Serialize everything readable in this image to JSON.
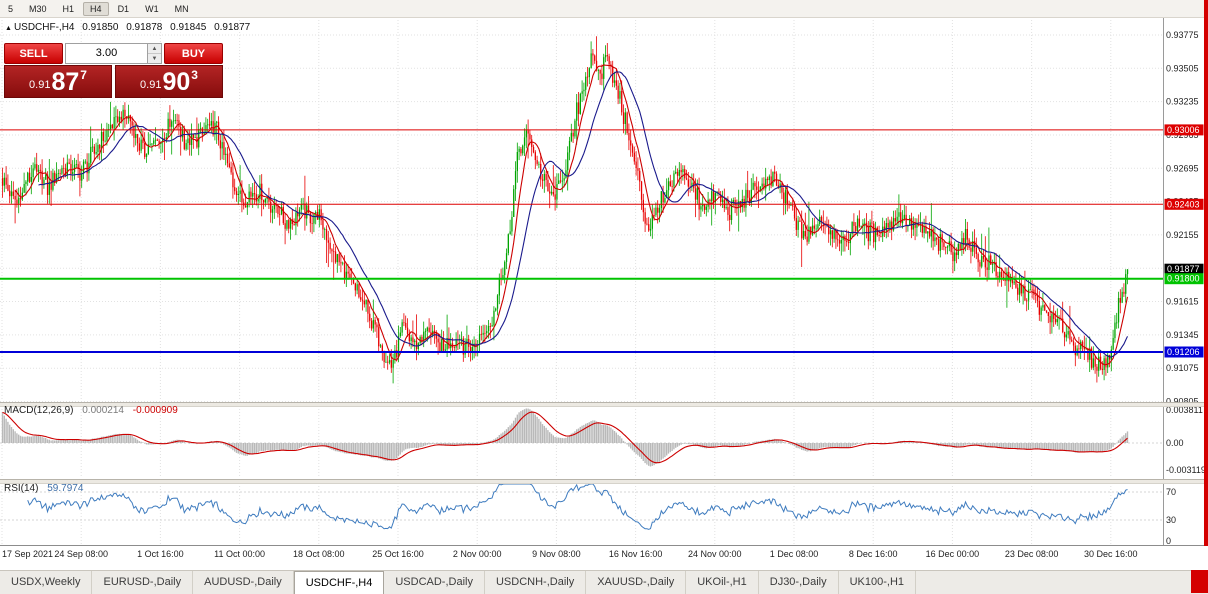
{
  "toolbar": {
    "timeframes": [
      "5",
      "M30",
      "H1",
      "H4",
      "D1",
      "W1",
      "MN"
    ],
    "active": "H4"
  },
  "symbol_header": {
    "marker": "▲",
    "symbol": "USDCHF-,H4",
    "open": "0.91850",
    "high": "0.91878",
    "low": "0.91845",
    "close": "0.91877"
  },
  "trade_widget": {
    "sell_label": "SELL",
    "buy_label": "BUY",
    "volume": "3.00",
    "spin_up_icon": "▲",
    "spin_down_icon": "▼",
    "sell_price": {
      "prefix": "0.91",
      "big": "87",
      "sup": "7"
    },
    "buy_price": {
      "prefix": "0.91",
      "big": "90",
      "sup": "3"
    }
  },
  "indicators": {
    "macd": {
      "label": "MACD(12,26,9)",
      "value": "0.000214",
      "signal_value": "-0.000909",
      "axis": [
        "0.003811",
        "0.00",
        "-0.003119"
      ]
    },
    "rsi": {
      "label": "RSI(14)",
      "value": "59.7974",
      "axis": [
        "70",
        "30",
        "0"
      ]
    }
  },
  "tabs": {
    "items": [
      "USDX,Weekly",
      "EURUSD-,Daily",
      "AUDUSD-,Daily",
      "USDCHF-,H4",
      "USDCAD-,Daily",
      "USDCNH-,Daily",
      "XAUUSD-,Daily",
      "UKOil-,H1",
      "DJ30-,Daily",
      "UK100-,H1"
    ],
    "active": "USDCHF-,H4"
  },
  "chart_data": {
    "type": "candlestick",
    "symbol": "USDCHF-",
    "timeframe": "H4",
    "ohlc_header": {
      "open": 0.9185,
      "high": 0.91878,
      "low": 0.91845,
      "close": 0.91877
    },
    "price_axis": {
      "labels": [
        "0.93775",
        "0.93505",
        "0.93235",
        "0.92965",
        "0.92695",
        "0.92425",
        "0.92155",
        "0.91885",
        "0.91615",
        "0.91345",
        "0.91075",
        "0.90805"
      ]
    },
    "levels": [
      {
        "name": "resistance-line-1",
        "price": 0.93006,
        "color": "#dd0000",
        "width": 1,
        "badge": "0.93006",
        "badge_only": false
      },
      {
        "name": "resistance-line-2",
        "price": 0.92403,
        "color": "#dd0000",
        "width": 1,
        "badge": "0.92403",
        "badge_only": false
      },
      {
        "name": "current-bid",
        "price": 0.91877,
        "color": "#000000",
        "width": 0,
        "badge": "0.91877",
        "badge_only": true
      },
      {
        "name": "support-line-green",
        "price": 0.918,
        "color": "#00c300",
        "width": 2,
        "badge": "0.91800",
        "badge_only": false
      },
      {
        "name": "support-line-blue",
        "price": 0.91206,
        "color": "#0000d8",
        "width": 2,
        "badge": "0.91206",
        "badge_only": false
      }
    ],
    "time_axis": {
      "labels": [
        "17 Sep 2021",
        "24 Sep 08:00",
        "1 Oct 16:00",
        "11 Oct 00:00",
        "18 Oct 08:00",
        "25 Oct 16:00",
        "2 Nov 00:00",
        "9 Nov 08:00",
        "16 Nov 16:00",
        "24 Nov 00:00",
        "1 Dec 08:00",
        "8 Dec 16:00",
        "16 Dec 00:00",
        "23 Dec 08:00",
        "30 Dec 16:00"
      ]
    },
    "bars_total": 626,
    "price_path": [
      [
        0,
        0.9262
      ],
      [
        8,
        0.9241
      ],
      [
        17,
        0.927
      ],
      [
        25,
        0.9254
      ],
      [
        33,
        0.9272
      ],
      [
        44,
        0.9266
      ],
      [
        53,
        0.9288
      ],
      [
        61,
        0.9306
      ],
      [
        69,
        0.9314
      ],
      [
        78,
        0.9283
      ],
      [
        88,
        0.9294
      ],
      [
        96,
        0.9308
      ],
      [
        103,
        0.9288
      ],
      [
        111,
        0.9299
      ],
      [
        119,
        0.9302
      ],
      [
        127,
        0.9262
      ],
      [
        132,
        0.9243
      ],
      [
        142,
        0.9251
      ],
      [
        150,
        0.924
      ],
      [
        158,
        0.9226
      ],
      [
        167,
        0.9234
      ],
      [
        176,
        0.9229
      ],
      [
        183,
        0.9201
      ],
      [
        192,
        0.918
      ],
      [
        200,
        0.9161
      ],
      [
        208,
        0.9136
      ],
      [
        216,
        0.9107
      ],
      [
        222,
        0.9139
      ],
      [
        229,
        0.9126
      ],
      [
        236,
        0.914
      ],
      [
        244,
        0.9122
      ],
      [
        253,
        0.9134
      ],
      [
        260,
        0.9121
      ],
      [
        264,
        0.9128
      ],
      [
        272,
        0.9149
      ],
      [
        281,
        0.9208
      ],
      [
        286,
        0.9278
      ],
      [
        292,
        0.9298
      ],
      [
        299,
        0.9263
      ],
      [
        306,
        0.9246
      ],
      [
        308,
        0.925
      ],
      [
        314,
        0.9278
      ],
      [
        321,
        0.9328
      ],
      [
        327,
        0.9358
      ],
      [
        332,
        0.9345
      ],
      [
        336,
        0.9363
      ],
      [
        342,
        0.933
      ],
      [
        347,
        0.93
      ],
      [
        352,
        0.927
      ],
      [
        358,
        0.9222
      ],
      [
        364,
        0.9236
      ],
      [
        371,
        0.9254
      ],
      [
        378,
        0.9268
      ],
      [
        383,
        0.9252
      ],
      [
        389,
        0.924
      ],
      [
        397,
        0.925
      ],
      [
        404,
        0.9233
      ],
      [
        411,
        0.9242
      ],
      [
        419,
        0.9254
      ],
      [
        428,
        0.9261
      ],
      [
        436,
        0.9241
      ],
      [
        441,
        0.9226
      ],
      [
        447,
        0.9213
      ],
      [
        454,
        0.9228
      ],
      [
        461,
        0.9218
      ],
      [
        468,
        0.9206
      ],
      [
        475,
        0.9227
      ],
      [
        484,
        0.9216
      ],
      [
        492,
        0.9224
      ],
      [
        500,
        0.9231
      ],
      [
        508,
        0.9221
      ],
      [
        517,
        0.9211
      ],
      [
        528,
        0.9203
      ],
      [
        536,
        0.9212
      ],
      [
        544,
        0.9193
      ],
      [
        553,
        0.9186
      ],
      [
        561,
        0.9173
      ],
      [
        572,
        0.9165
      ],
      [
        581,
        0.9151
      ],
      [
        589,
        0.9139
      ],
      [
        597,
        0.9126
      ],
      [
        606,
        0.9113
      ],
      [
        612,
        0.9108
      ],
      [
        617,
        0.9131
      ],
      [
        621,
        0.9163
      ],
      [
        625,
        0.91877
      ]
    ],
    "up_color": "#00a400",
    "down_color": "#e80000",
    "ma_fast": {
      "period": 8,
      "color": "#cc0000"
    },
    "ma_slow": {
      "period": 21,
      "color": "#1a1a8c"
    },
    "macd": {
      "fast": 12,
      "slow": 26,
      "signal": 9,
      "hist_color": "#b9b9b9",
      "signal_color": "#cc0000",
      "range": [
        -0.003119,
        0.003811
      ]
    },
    "rsi": {
      "period": 14,
      "color": "#3f7cbf",
      "levels": [
        30,
        70
      ]
    }
  }
}
